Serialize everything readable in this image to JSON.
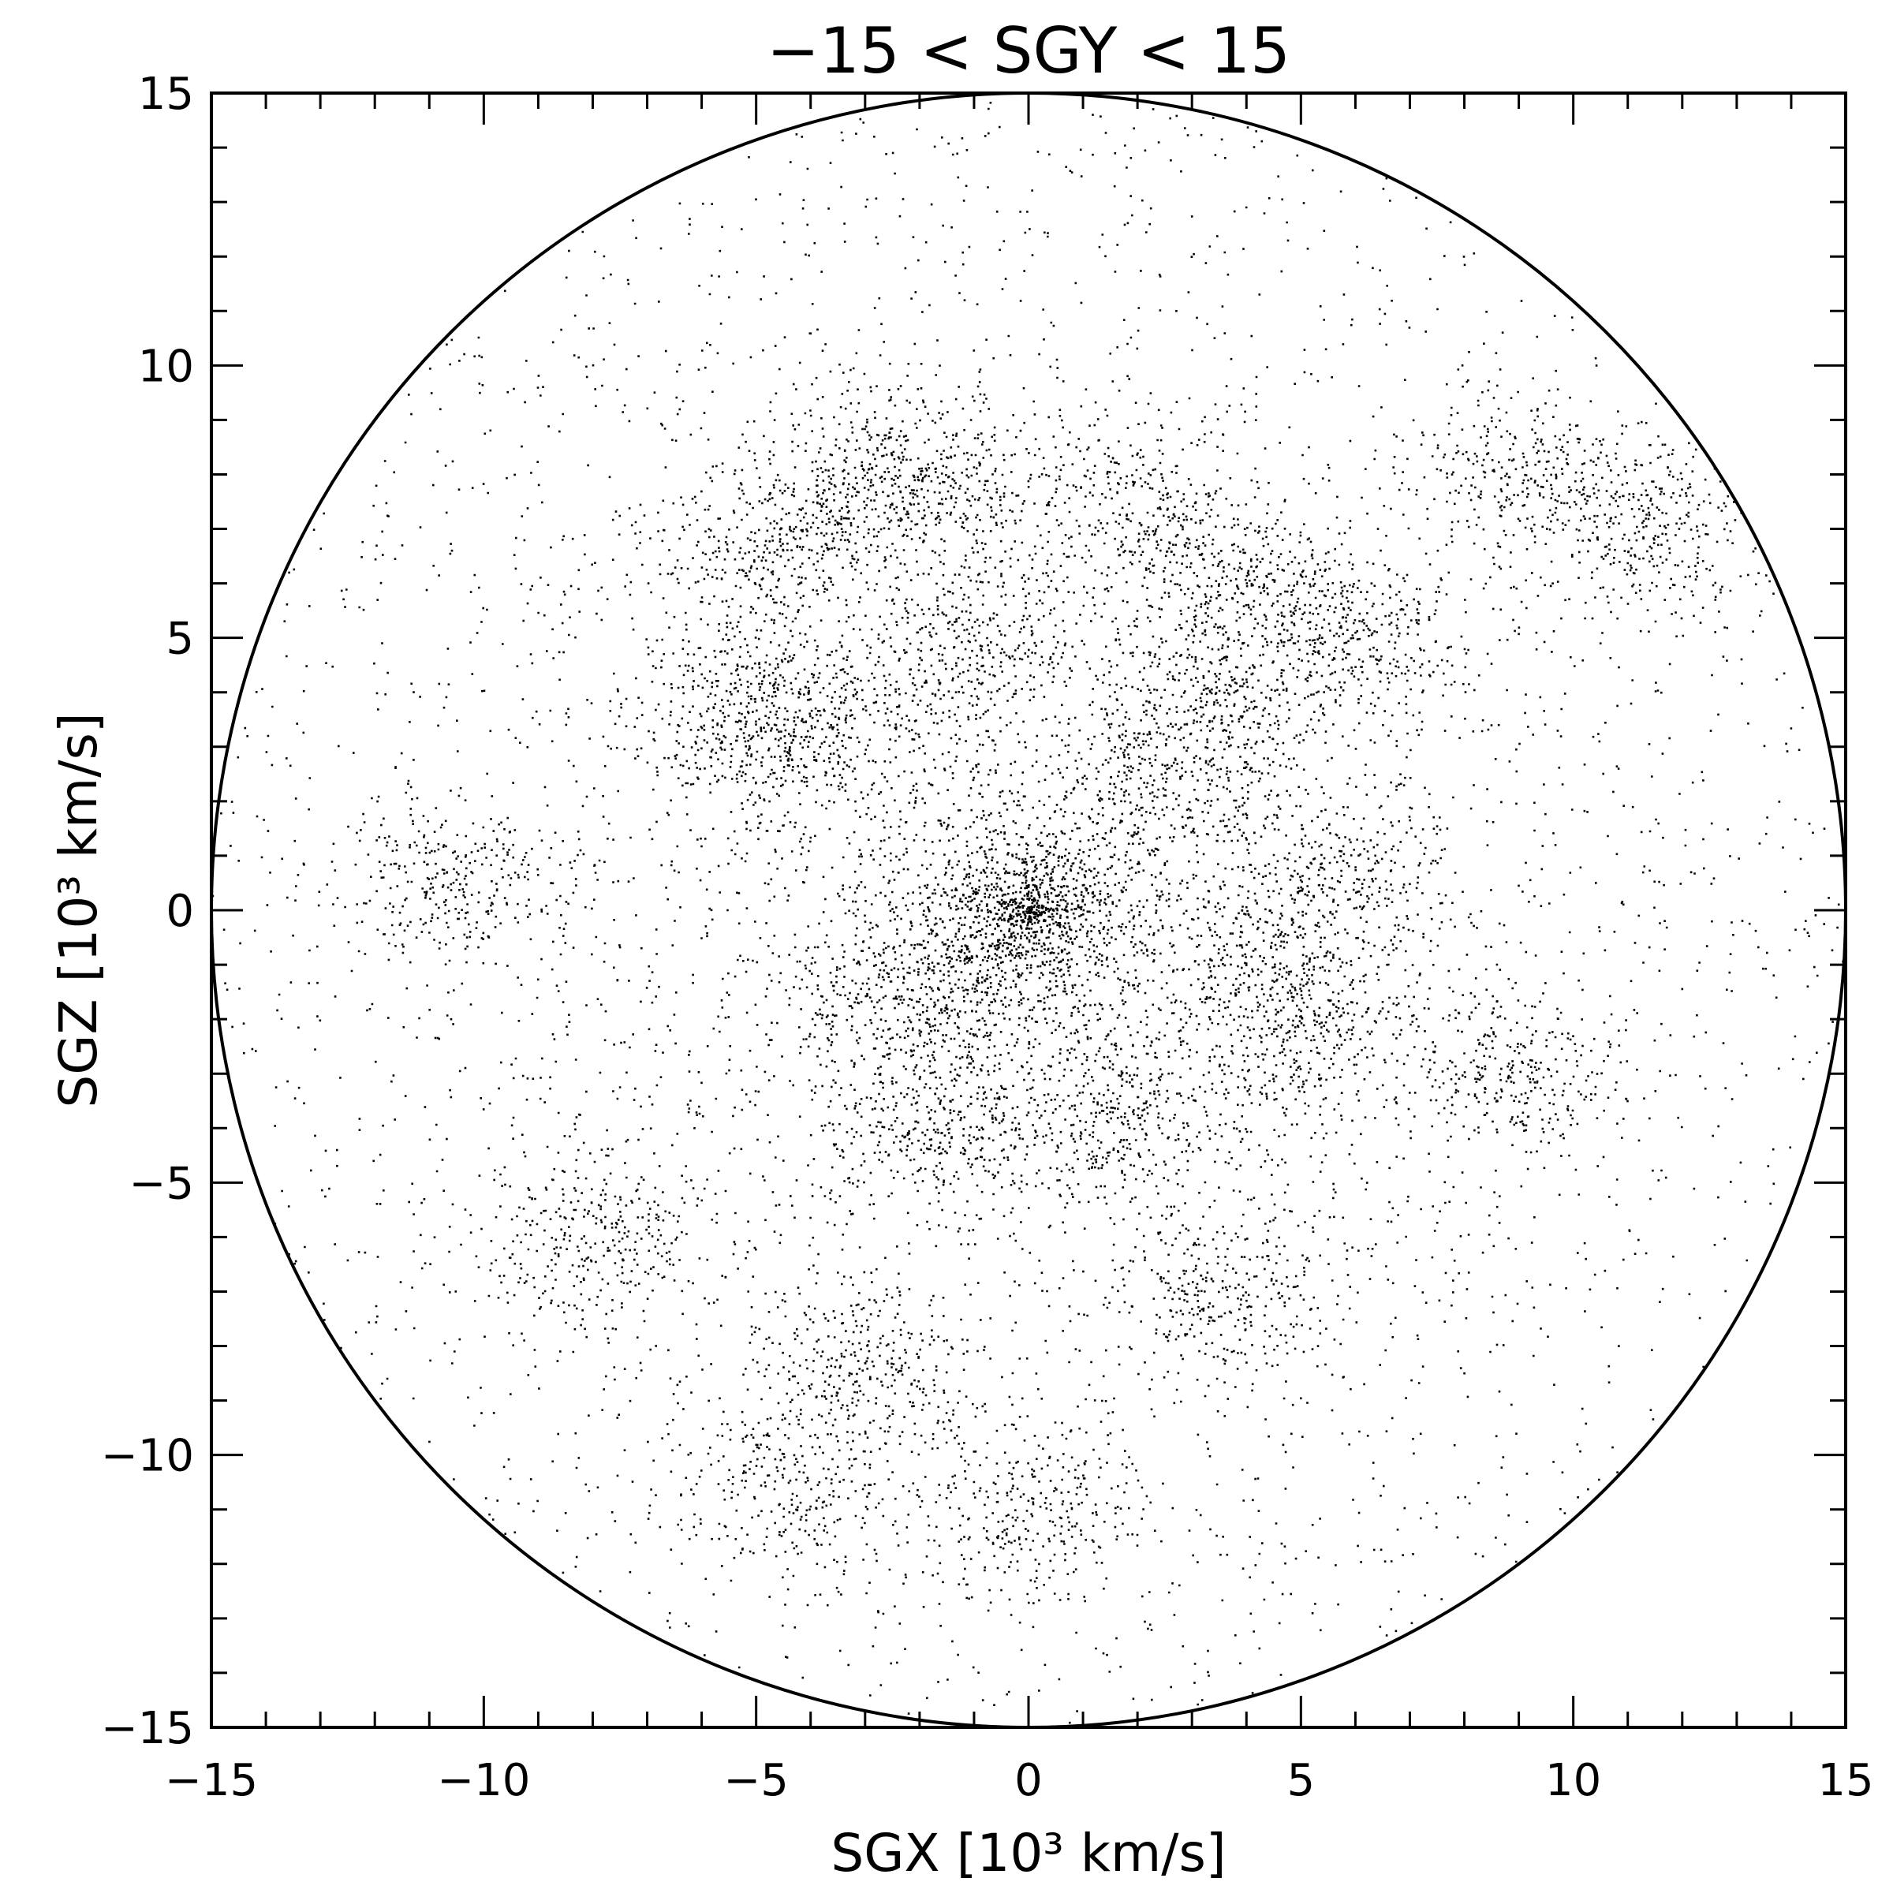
{
  "chart_data": {
    "type": "scatter",
    "title": "−15 < SGY < 15",
    "xlabel": "SGX [10³ km/s]",
    "ylabel": "SGZ [10³ km/s]",
    "xlim": [
      -15,
      15
    ],
    "ylim": [
      -15,
      15
    ],
    "x_ticks": [
      -15,
      -10,
      -5,
      0,
      5,
      10,
      15
    ],
    "y_ticks": [
      -15,
      -10,
      -5,
      0,
      5,
      10,
      15
    ],
    "x_tick_labels": [
      "−15",
      "−10",
      "−5",
      "0",
      "5",
      "10",
      "15"
    ],
    "y_tick_labels": [
      "−15",
      "−10",
      "−5",
      "0",
      "5",
      "10",
      "15"
    ],
    "minor_tick_step": 1,
    "grid": false,
    "boundary_circle": {
      "center": [
        0,
        0
      ],
      "radius": 15
    },
    "series": [
      {
        "marker_color": "#000000",
        "density_peaks": [
          [
            0,
            0
          ],
          [
            -0.5,
            -0.5
          ],
          [
            -2.5,
            -1.8
          ],
          [
            4.5,
            -1
          ],
          [
            -4,
            3.5
          ],
          [
            4,
            6
          ],
          [
            -5,
            6.5
          ],
          [
            -3,
            7.5
          ],
          [
            2,
            7.5
          ],
          [
            1.5,
            -3.8
          ],
          [
            3.5,
            -7
          ],
          [
            -3,
            -8.5
          ],
          [
            9,
            -3
          ],
          [
            -10.5,
            0.5
          ],
          [
            2.5,
            2.5
          ],
          [
            -1.5,
            -4
          ],
          [
            -5.5,
            3.5
          ],
          [
            5,
            -2.5
          ],
          [
            -1,
            5
          ],
          [
            6,
            5
          ],
          [
            0,
            -11
          ],
          [
            -4.5,
            -10.5
          ],
          [
            11.5,
            7
          ],
          [
            -8,
            -6
          ],
          [
            9,
            8
          ],
          [
            3.5,
            4
          ],
          [
            -2,
            8
          ],
          [
            5.5,
            0.5
          ]
        ]
      }
    ]
  }
}
